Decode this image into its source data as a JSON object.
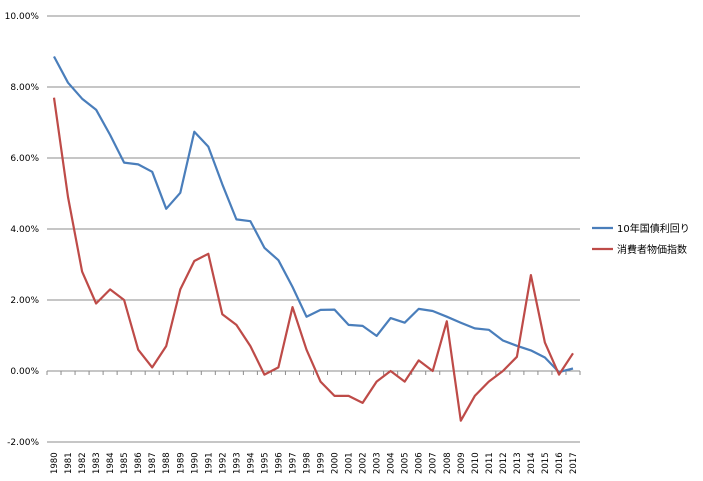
{
  "chart_data": {
    "type": "line",
    "title": "",
    "xlabel": "",
    "ylabel": "",
    "ylim": [
      -2.0,
      10.0
    ],
    "y_tick_labels": [
      "-2.00%",
      "0.00%",
      "2.00%",
      "4.00%",
      "6.00%",
      "8.00%",
      "10.00%"
    ],
    "y_tick_values": [
      -2,
      0,
      2,
      4,
      6,
      8,
      10
    ],
    "grid": true,
    "legend_position": "right",
    "x": [
      "1980",
      "1981",
      "1982",
      "1983",
      "1984",
      "1985",
      "1986",
      "1987",
      "1988",
      "1989",
      "1990",
      "1991",
      "1992",
      "1993",
      "1994",
      "1995",
      "1996",
      "1997",
      "1998",
      "1999",
      "2000",
      "2001",
      "2002",
      "2003",
      "2004",
      "2005",
      "2006",
      "2007",
      "2008",
      "2009",
      "2010",
      "2011",
      "2012",
      "2013",
      "2014",
      "2015",
      "2016",
      "2017"
    ],
    "series": [
      {
        "name": "10年国債利回り",
        "color": "#4a7ebb",
        "values": [
          8.86,
          8.12,
          7.67,
          7.36,
          6.65,
          5.87,
          5.82,
          5.61,
          4.57,
          5.02,
          6.74,
          6.32,
          5.26,
          4.27,
          4.22,
          3.47,
          3.12,
          2.37,
          1.53,
          1.72,
          1.73,
          1.3,
          1.27,
          0.99,
          1.49,
          1.36,
          1.75,
          1.69,
          1.53,
          1.36,
          1.2,
          1.16,
          0.86,
          0.71,
          0.58,
          0.38,
          -0.03,
          0.07
        ]
      },
      {
        "name": "消費者物価指数",
        "color": "#be4b48",
        "values": [
          7.7,
          4.9,
          2.8,
          1.9,
          2.3,
          2.0,
          0.6,
          0.1,
          0.7,
          2.3,
          3.1,
          3.3,
          1.6,
          1.3,
          0.7,
          -0.1,
          0.1,
          1.8,
          0.6,
          -0.3,
          -0.7,
          -0.7,
          -0.9,
          -0.3,
          0.0,
          -0.3,
          0.3,
          0.0,
          1.4,
          -1.4,
          -0.7,
          -0.3,
          0.0,
          0.4,
          2.7,
          0.8,
          -0.1,
          0.5
        ]
      }
    ]
  }
}
